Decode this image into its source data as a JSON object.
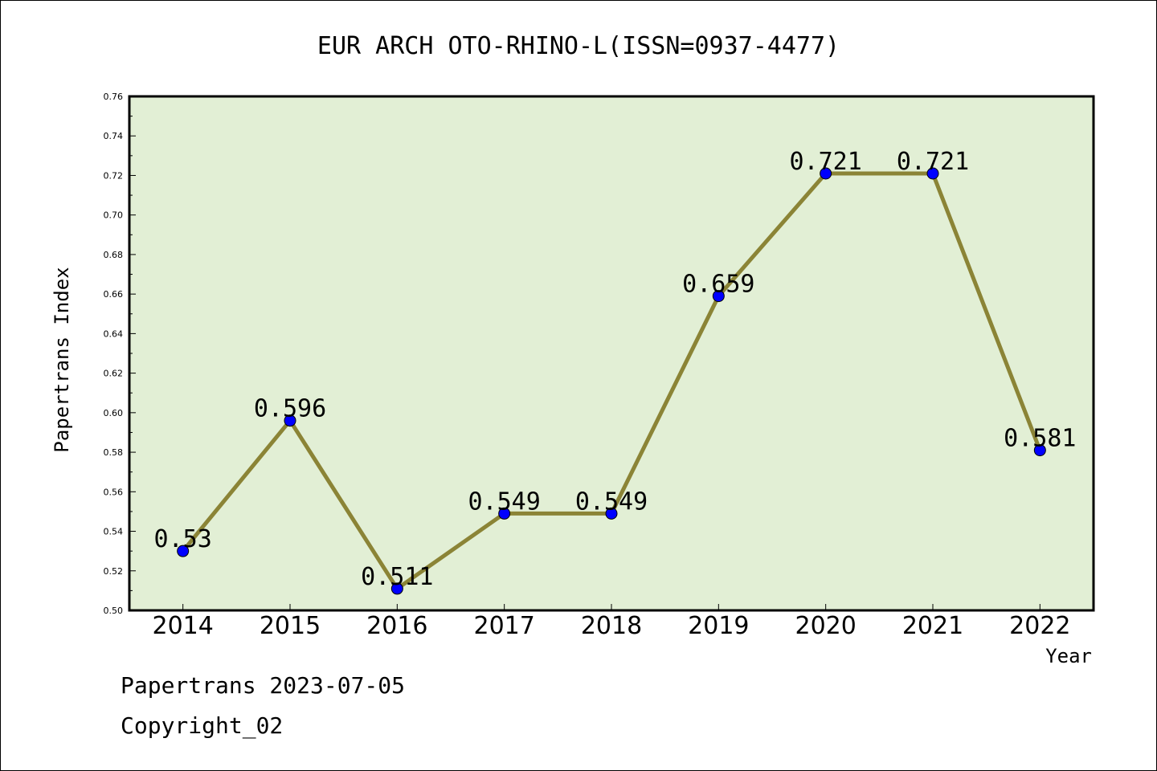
{
  "chart_data": {
    "type": "line",
    "title": "EUR ARCH OTO-RHINO-L(ISSN=0937-4477)",
    "xlabel": "Year",
    "ylabel": "Papertrans Index",
    "categories": [
      "2014",
      "2015",
      "2016",
      "2017",
      "2018",
      "2019",
      "2020",
      "2021",
      "2022"
    ],
    "series": [
      {
        "values": [
          0.53,
          0.596,
          0.511,
          0.549,
          0.549,
          0.659,
          0.721,
          0.721,
          0.581
        ],
        "labels": [
          "0.53",
          "0.596",
          "0.511",
          "0.549",
          "0.549",
          "0.659",
          "0.721",
          "0.721",
          "0.581"
        ]
      }
    ],
    "ylim": [
      0.5,
      0.76
    ],
    "yticks": [
      "0.50",
      "0.52",
      "0.54",
      "0.56",
      "0.58",
      "0.60",
      "0.62",
      "0.64",
      "0.66",
      "0.68",
      "0.70",
      "0.72",
      "0.74",
      "0.76"
    ],
    "grid": false,
    "colors": {
      "plot_background": "#e2efd5",
      "line": "#8b8436",
      "marker": "#0000ff"
    }
  },
  "footer": {
    "line1": "Papertrans 2023-07-05",
    "line2": "Copyright_02"
  }
}
